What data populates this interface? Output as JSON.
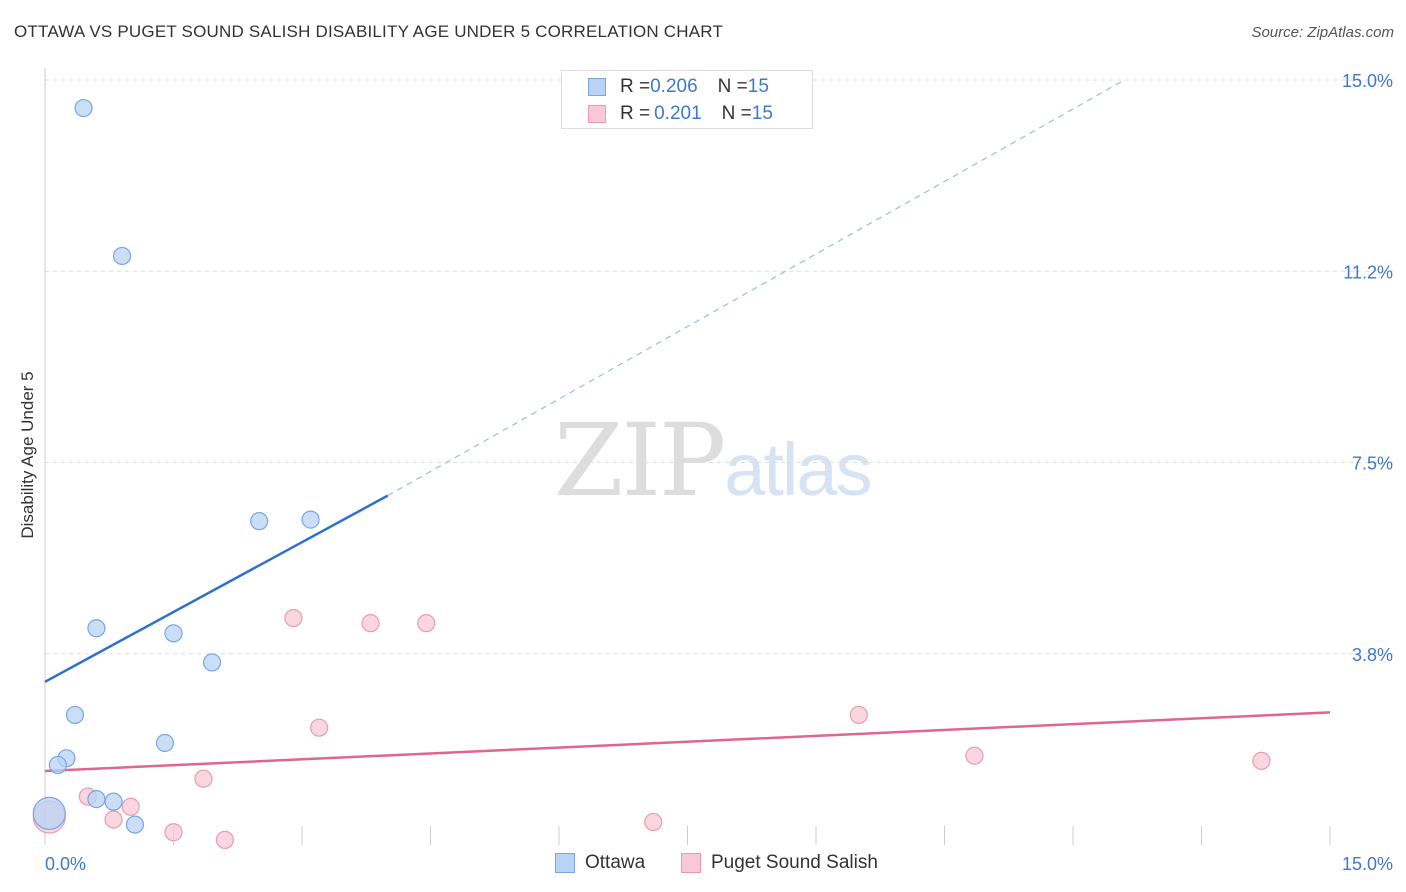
{
  "title": "OTTAWA VS PUGET SOUND SALISH DISABILITY AGE UNDER 5 CORRELATION CHART",
  "source": "Source: ZipAtlas.com",
  "watermark": {
    "part1": "ZIP",
    "part2": "atlas"
  },
  "legend": {
    "rows": [
      {
        "r_label": "R = ",
        "r_value": "0.206",
        "n_label": "N = ",
        "n_value": "15"
      },
      {
        "r_label": "R = ",
        "r_value": "0.201",
        "n_label": "N = ",
        "n_value": "15"
      }
    ]
  },
  "bottom_legend": [
    "Ottawa",
    "Puget Sound Salish"
  ],
  "colors": {
    "ottawa_fill": "#b8d3f5",
    "ottawa_stroke": "#7aa6de",
    "ottawa_line": "#2f6fcf",
    "salish_fill": "#f8c8d6",
    "salish_stroke": "#eb9ab3",
    "salish_line": "#e0668f",
    "tick_label": "#3f78c8",
    "grid": "#dddddd"
  },
  "chart_data": {
    "type": "scatter",
    "title": "OTTAWA VS PUGET SOUND SALISH DISABILITY AGE UNDER 5 CORRELATION CHART",
    "xlabel": "",
    "ylabel": "Disability Age Under 5",
    "xlim": [
      0,
      15
    ],
    "ylim": [
      0,
      15
    ],
    "x_tick_labels": [
      {
        "value": 0,
        "label": "0.0%"
      },
      {
        "value": 15,
        "label": "15.0%"
      }
    ],
    "y_tick_labels": [
      {
        "value": 3.75,
        "label": "3.8%"
      },
      {
        "value": 7.5,
        "label": "7.5%"
      },
      {
        "value": 11.25,
        "label": "11.2%"
      },
      {
        "value": 15,
        "label": "15.0%"
      }
    ],
    "grid": true,
    "legend_position": "top-center",
    "series": [
      {
        "name": "Ottawa",
        "points": [
          {
            "x": 0.45,
            "y": 14.45
          },
          {
            "x": 0.9,
            "y": 11.55
          },
          {
            "x": 2.5,
            "y": 6.35
          },
          {
            "x": 3.1,
            "y": 6.38
          },
          {
            "x": 0.6,
            "y": 4.25
          },
          {
            "x": 1.5,
            "y": 4.15
          },
          {
            "x": 1.95,
            "y": 3.58
          },
          {
            "x": 0.35,
            "y": 2.55
          },
          {
            "x": 1.4,
            "y": 2.0
          },
          {
            "x": 0.25,
            "y": 1.7
          },
          {
            "x": 0.15,
            "y": 1.57
          },
          {
            "x": 0.6,
            "y": 0.9
          },
          {
            "x": 0.8,
            "y": 0.85
          },
          {
            "x": 1.05,
            "y": 0.4
          },
          {
            "x": 0.05,
            "y": 0.62
          }
        ],
        "trend": {
          "x0": 0,
          "y0": 3.2,
          "x1": 4.0,
          "y1": 6.85,
          "extended_to_x": 12.6,
          "extended_y": 15.0
        }
      },
      {
        "name": "Puget Sound Salish",
        "points": [
          {
            "x": 2.9,
            "y": 4.45
          },
          {
            "x": 3.8,
            "y": 4.35
          },
          {
            "x": 4.45,
            "y": 4.35
          },
          {
            "x": 3.2,
            "y": 2.3
          },
          {
            "x": 1.85,
            "y": 1.3
          },
          {
            "x": 0.5,
            "y": 0.95
          },
          {
            "x": 1.0,
            "y": 0.75
          },
          {
            "x": 0.8,
            "y": 0.5
          },
          {
            "x": 1.5,
            "y": 0.25
          },
          {
            "x": 2.1,
            "y": 0.1
          },
          {
            "x": 7.1,
            "y": 0.45
          },
          {
            "x": 9.5,
            "y": 2.55
          },
          {
            "x": 10.85,
            "y": 1.75
          },
          {
            "x": 14.2,
            "y": 1.65
          },
          {
            "x": 0.05,
            "y": 0.55
          }
        ],
        "trend": {
          "x0": 0,
          "y0": 1.45,
          "x1": 15,
          "y1": 2.6
        }
      }
    ]
  }
}
